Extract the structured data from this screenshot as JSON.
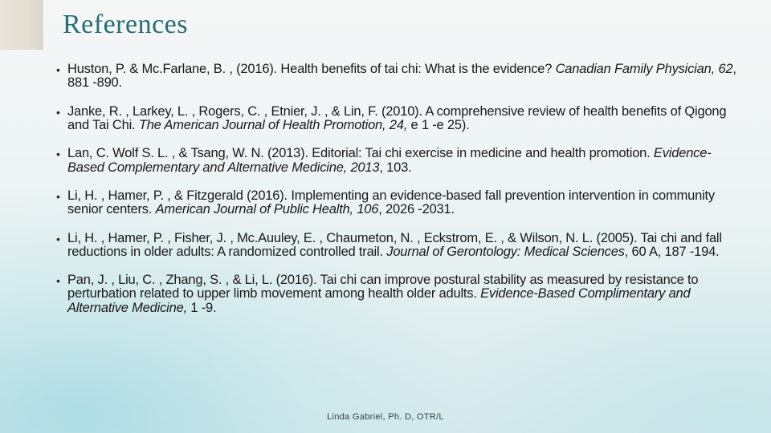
{
  "slide": {
    "title": "References",
    "title_color": "#2a6b74",
    "title_fontsize": 34,
    "accent_color": "#e0dcd0",
    "body_fontsize": 16.5,
    "body_color": "#1a1a1a",
    "background_gradient": [
      "#f5f7f6",
      "#eef4f4",
      "#e3eff0",
      "#d5e9ec"
    ]
  },
  "references": [
    {
      "plain1": "Huston, P. & Mc.Farlane, B. , (2016).  Health benefits of tai chi: What is the evidence?  ",
      "ital1": "Canadian Family Physician, 62",
      "plain2": ", 881 -890."
    },
    {
      "plain1": "Janke, R. , Larkey, L. , Rogers, C. , Etnier, J. , & Lin, F. (2010).  A comprehensive review of health benefits of Qigong and Tai Chi.  ",
      "ital1": "The American Journal of Health Promotion, 24, ",
      "plain2": "e 1 -e 25)."
    },
    {
      "plain1": "Lan, C. Wolf S. L. , & Tsang, W. N.  (2013).  Editorial: Tai chi exercise in medicine and health promotion.  ",
      "ital1": "Evidence-Based Complementary and Alternative Medicine, 2013",
      "plain2": ", 103."
    },
    {
      "plain1": "Li, H. , Hamer, P. , & Fitzgerald (2016).  Implementing an evidence-based fall prevention intervention in community senior centers.  ",
      "ital1": "American Journal of Public Health, 106",
      "plain2": ", 2026 -2031."
    },
    {
      "plain1": "Li, H. , Hamer, P. , Fisher, J. , Mc.Auuley, E. , Chaumeton, N. , Eckstrom, E. , & Wilson, N. L. (2005). Tai chi and fall reductions in older adults: A randomized controlled trail.  ",
      "ital1": "Journal of Gerontology: Medical Sciences",
      "plain2": ", 60 A, 187 -194."
    },
    {
      "plain1": "Pan, J. , Liu, C. , Zhang, S. , & Li, L. (2016).  Tai chi can improve postural stability as measured by resistance to perturbation related to upper limb movement among health older adults.  ",
      "ital1": "Evidence-Based Complimentary and Alternative Medicine, ",
      "plain2": "1 -9."
    }
  ],
  "footer": "Linda  Gabriel,  Ph. D,  OTR/L"
}
